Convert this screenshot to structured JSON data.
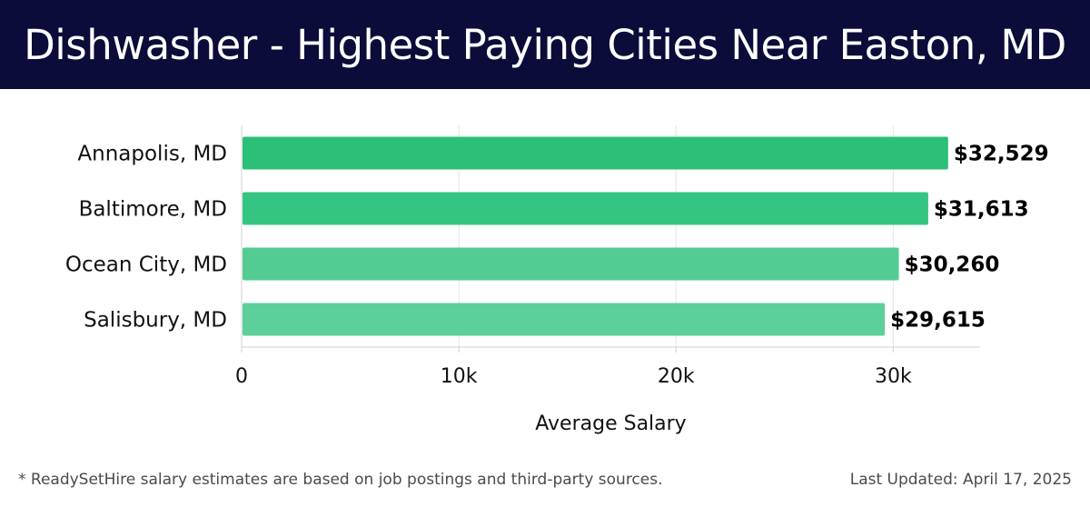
{
  "header": {
    "title": "Dishwasher - Highest Paying Cities Near Easton, MD"
  },
  "colors": {
    "header_bg": "#0c0c3a",
    "bar_colors": [
      "#2bbf78",
      "#35c582",
      "#52cc93",
      "#5ccf9a"
    ]
  },
  "chart_data": {
    "type": "bar",
    "orientation": "horizontal",
    "categories": [
      "Annapolis, MD",
      "Baltimore, MD",
      "Ocean City, MD",
      "Salisbury, MD"
    ],
    "values": [
      32529,
      31613,
      30260,
      29615
    ],
    "value_labels": [
      "$32,529",
      "$31,613",
      "$30,260",
      "$29,615"
    ],
    "xlabel": "Average Salary",
    "xlim": [
      0,
      34000
    ],
    "xticks": [
      0,
      10000,
      20000,
      30000
    ],
    "xtick_labels": [
      "0",
      "10k",
      "20k",
      "30k"
    ],
    "grid": true
  },
  "footer": {
    "note": "* ReadySetHire salary estimates are based on job postings and third-party sources.",
    "updated": "Last Updated: April 17, 2025"
  }
}
